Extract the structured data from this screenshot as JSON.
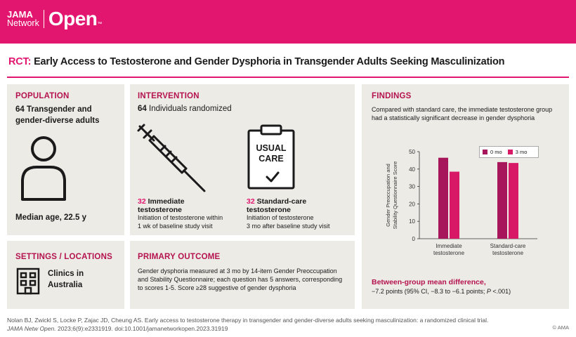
{
  "brand": {
    "jama": "JAMA",
    "network": "Network",
    "open": "Open",
    "tm": "™"
  },
  "title": {
    "prefix": "RCT:",
    "text": "Early Access to Testosterone and Gender Dysphoria in Transgender Adults Seeking Masculinization"
  },
  "population": {
    "heading": "POPULATION",
    "line1": "64 Transgender and",
    "line2": "gender-diverse adults",
    "median_age": "Median age, 22.5 y"
  },
  "intervention": {
    "heading": "INTERVENTION",
    "count": "64",
    "randomized": "Individuals randomized",
    "immediate": {
      "n": "32",
      "label1": "Immediate",
      "label2": "testosterone",
      "desc1": "Initiation of testosterone within",
      "desc2": "1 wk of baseline study visit"
    },
    "usual_card": {
      "line1": "USUAL",
      "line2": "CARE"
    },
    "standard": {
      "n": "32",
      "label1": "Standard-care",
      "label2": "testosterone",
      "desc1": "Initiation of testosterone",
      "desc2": "3 mo after baseline study visit"
    }
  },
  "settings": {
    "heading": "SETTINGS / LOCATIONS",
    "line1": "Clinics in",
    "line2": "Australia"
  },
  "outcome": {
    "heading": "PRIMARY OUTCOME",
    "line1": "Gender dysphoria measured at 3 mo by 14-item Gender Preoccupation",
    "line2": "and Stability Questionnaire; each question has 5 answers, corresponding",
    "line3": "to scores 1-5. Score ≥28 suggestive of gender dysphoria"
  },
  "findings": {
    "heading": "FINDINGS",
    "line1": "Compared with standard care, the immediate testosterone group",
    "line2": "had a statistically significant decrease in gender dysphoria",
    "diff_heading": "Between-group mean difference,",
    "diff_pre": "−7.2 points (95% CI, −8.3 to −6.1 points; ",
    "diff_p": "P",
    "diff_post": " <.001)"
  },
  "chart_data": {
    "type": "bar",
    "categories": [
      "Immediate testosterone",
      "Standard-care testosterone"
    ],
    "series": [
      {
        "name": "0 mo",
        "values": [
          46.5,
          44
        ],
        "color": "#a7155a"
      },
      {
        "name": "3 mo",
        "values": [
          38.5,
          43.5
        ],
        "color": "#d81a66"
      }
    ],
    "ylabel": "Gender Preoccupation and Stability Questionnaire Score",
    "ylim": [
      0,
      50
    ],
    "yticks": [
      "0",
      "10",
      "20",
      "30",
      "40",
      "50"
    ],
    "legend": "top-right",
    "grid": false
  },
  "footer": {
    "citation1": "Nolan BJ, Zwickl S, Locke P, Zajac JD, Cheung AS. Early access to testosterone therapy in transgender and gender-diverse adults seeking masculinization: a randomized clinical trial.",
    "journal": "JAMA Netw Open.",
    "citation2": " 2023;6(9):e2331919. doi:10.1001/jamanetworkopen.2023.31919",
    "copyright": "© AMA"
  }
}
